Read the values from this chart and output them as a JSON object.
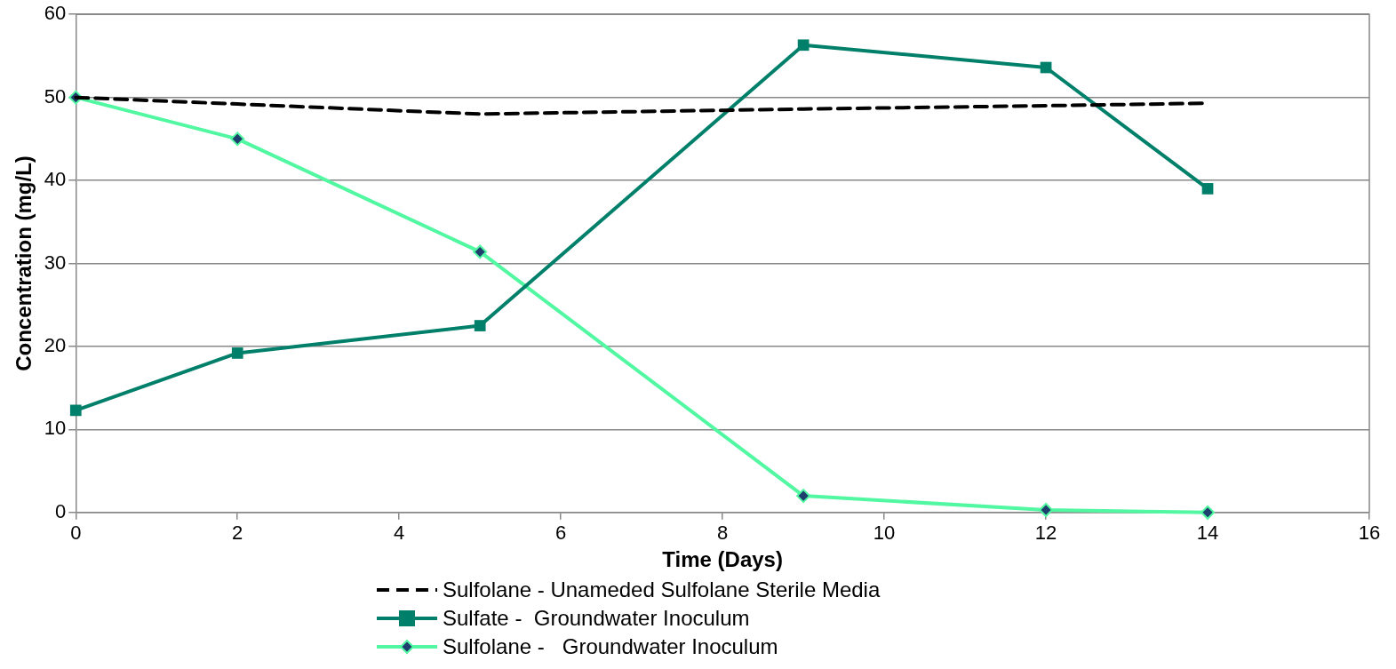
{
  "chart_data": {
    "type": "line",
    "xlabel": "Time (Days)",
    "ylabel": "Concentration (mg/L)",
    "xlim": [
      0,
      16
    ],
    "xticks": [
      0,
      2,
      4,
      6,
      8,
      10,
      12,
      14,
      16
    ],
    "ylim": [
      0,
      60
    ],
    "yticks": [
      0,
      10,
      20,
      30,
      40,
      50,
      60
    ],
    "grid": "y",
    "legend": "bottom",
    "series": [
      {
        "name": "Sulfolane - Unameded Sulfolane Sterile Media",
        "color": "#000000",
        "line_style": "dashed",
        "marker": "none",
        "x": [
          0,
          2,
          5,
          9,
          12,
          14
        ],
        "values": [
          50,
          49.2,
          48,
          48.6,
          49,
          49.3
        ]
      },
      {
        "name": "Sulfate -  Groundwater Inoculum",
        "color": "#00806a",
        "line_style": "solid",
        "marker": "square",
        "x": [
          0,
          2,
          5,
          9,
          12,
          14
        ],
        "values": [
          12.3,
          19.2,
          22.5,
          56.3,
          53.6,
          39
        ]
      },
      {
        "name": "Sulfolane -   Groundwater Inoculum",
        "color": "#52f7a2",
        "line_style": "solid",
        "marker": "diamond",
        "x": [
          0,
          2,
          5,
          9,
          12,
          14
        ],
        "values": [
          50,
          45,
          31.4,
          2,
          0.3,
          0
        ]
      }
    ]
  }
}
